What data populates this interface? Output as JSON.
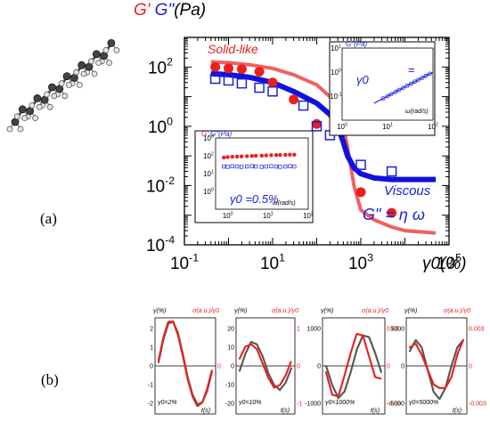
{
  "chart_data": [
    {
      "id": "main",
      "type": "scatter",
      "title_parts": [
        {
          "text": "G'",
          "color": "#e8201e"
        },
        {
          "text": " G\"",
          "color": "#1a22d8"
        },
        {
          "text": "(Pa)",
          "color": "#000000"
        }
      ],
      "xlabel": "γ0(%)",
      "xscale": "log",
      "yscale": "log",
      "xlim": [
        0.1,
        100000
      ],
      "ylim": [
        0.0001,
        1000
      ],
      "xticks": [
        0.1,
        10,
        1000,
        100000
      ],
      "xtick_labels": [
        {
          "base": "10",
          "exp": "-1"
        },
        {
          "base": "10",
          "exp": "1"
        },
        {
          "base": "10",
          "exp": "3"
        },
        {
          "base": "10",
          "exp": "5"
        }
      ],
      "yticks": [
        0.0001,
        0.01,
        1,
        100
      ],
      "ytick_labels": [
        {
          "base": "10",
          "exp": "-4"
        },
        {
          "base": "10",
          "exp": "-2"
        },
        {
          "base": "10",
          "exp": "0"
        },
        {
          "base": "10",
          "exp": "2"
        }
      ],
      "annotations": {
        "solid": {
          "text": "Solid-like",
          "color": "#e8201e"
        },
        "viscous": {
          "text": "Viscous",
          "color": "#1a22d8"
        },
        "relation": {
          "text": "G\" = η ω",
          "color": "#1a22d8"
        }
      },
      "series": [
        {
          "name": "G'",
          "kind": "points",
          "marker": "filled-circle",
          "color": "#e8201e",
          "x": [
            0.5,
            1,
            2,
            5,
            10,
            30,
            100,
            1000,
            5000
          ],
          "y": [
            100,
            90,
            85,
            70,
            30,
            8,
            1.2,
            0.006,
            0.0012
          ]
        },
        {
          "name": "G\"",
          "kind": "points",
          "marker": "open-square",
          "color": "#1a22d8",
          "x": [
            0.5,
            1,
            2,
            5,
            10,
            50,
            100,
            200,
            1000,
            5000
          ],
          "y": [
            40,
            35,
            28,
            20,
            15,
            5,
            1,
            0.5,
            0.05,
            0.03
          ]
        },
        {
          "name": "G' fit",
          "kind": "line",
          "color": "#f06060",
          "width": 4,
          "x": [
            0.4,
            1,
            3,
            10,
            30,
            100,
            200,
            350,
            500,
            700,
            1000,
            2000,
            5000,
            10000,
            50000
          ],
          "y": [
            150,
            140,
            120,
            90,
            55,
            25,
            10,
            2.5,
            0.2,
            0.01,
            0.0015,
            0.0007,
            0.0004,
            0.0003,
            0.00025
          ]
        },
        {
          "name": "G\" fit",
          "kind": "line",
          "color": "#1010e0",
          "width": 6,
          "x": [
            0.4,
            1,
            3,
            10,
            30,
            100,
            200,
            300,
            400,
            500,
            700,
            1000,
            2000,
            5000,
            10000,
            50000
          ],
          "y": [
            60,
            55,
            45,
            30,
            15,
            6,
            2.5,
            1,
            0.3,
            0.1,
            0.04,
            0.025,
            0.018,
            0.016,
            0.016,
            0.016
          ]
        }
      ]
    },
    {
      "id": "inset_viscous",
      "type": "scatter",
      "title": "G\"(Pa)",
      "xlabel": "ω(rad/s)",
      "xscale": "log",
      "yscale": "log",
      "xlim": [
        1,
        100
      ],
      "ylim": [
        0.01,
        10
      ],
      "ytick_labels": [
        {
          "base": "10",
          "exp": "1"
        },
        {
          "base": "10",
          "exp": "0"
        },
        {
          "base": "10",
          "exp": "-1"
        }
      ],
      "xtick_labels": [
        {
          "base": "10",
          "exp": "0"
        },
        {
          "base": "10",
          "exp": "1"
        },
        {
          "base": "10",
          "exp": "2"
        }
      ],
      "annotations": {
        "gamma": "γ0",
        "eq": "="
      },
      "series": [
        {
          "name": "G\"",
          "kind": "points",
          "marker": "open-circle",
          "color": "#1a22d8",
          "x": [
            8,
            10,
            12,
            15,
            18,
            22,
            27,
            33,
            40,
            48,
            58,
            70,
            85
          ],
          "y": [
            0.08,
            0.1,
            0.12,
            0.15,
            0.18,
            0.22,
            0.27,
            0.33,
            0.4,
            0.48,
            0.58,
            0.7,
            0.85
          ]
        },
        {
          "name": "slope",
          "kind": "line",
          "color": "#1a22d8",
          "width": 1.2,
          "x": [
            5,
            100
          ],
          "y": [
            0.05,
            1
          ]
        }
      ]
    },
    {
      "id": "inset_solid",
      "type": "scatter",
      "title_parts": [
        {
          "text": "G'",
          "color": "#e8201e"
        },
        {
          "text": ",G\"(Pa)",
          "color": "#1a22d8"
        }
      ],
      "xlabel": "ω(rad/s)",
      "xscale": "log",
      "yscale": "log",
      "xlim": [
        0.5,
        100
      ],
      "ylim": [
        0.1,
        1000
      ],
      "ytick_labels": [
        {
          "base": "10",
          "exp": "3"
        },
        {
          "base": "10",
          "exp": "2"
        },
        {
          "base": "10",
          "exp": "1"
        },
        {
          "base": "10",
          "exp": "0"
        }
      ],
      "xtick_labels": [
        {
          "base": "10",
          "exp": "0"
        },
        {
          "base": "10",
          "exp": "1"
        },
        {
          "base": "10",
          "exp": "2"
        }
      ],
      "annotations": {
        "gamma": "γ0 =0.5%"
      },
      "series": [
        {
          "name": "G'",
          "kind": "points",
          "marker": "filled-circle",
          "color": "#e8201e",
          "x": [
            0.8,
            1,
            1.3,
            1.7,
            2.2,
            3,
            4,
            5,
            7,
            9,
            12,
            16,
            20,
            27,
            35,
            45
          ],
          "y": [
            80,
            85,
            88,
            90,
            92,
            95,
            98,
            100,
            102,
            105,
            108,
            110,
            112,
            114,
            115,
            115
          ]
        },
        {
          "name": "G\"",
          "kind": "points",
          "marker": "open-square",
          "color": "#1a22d8",
          "x": [
            0.8,
            1,
            1.3,
            1.7,
            2.2,
            3,
            4,
            5,
            7,
            9,
            12,
            16,
            20,
            27,
            35,
            45
          ],
          "y": [
            25,
            24,
            26,
            25,
            24,
            25,
            26,
            25,
            24,
            25,
            26,
            25,
            24,
            25,
            26,
            25
          ]
        }
      ]
    },
    {
      "id": "waveform_2",
      "type": "line",
      "y_left_label": "γ(%)",
      "y_right_label": "σ(a.u.)/γ0",
      "xlabel": "t(s)",
      "gamma_label": "γ0=2%",
      "left_ticks": [
        "2",
        "1",
        "0",
        "-1",
        "-2"
      ],
      "right_ticks": [
        "0"
      ],
      "series": [
        {
          "name": "γ",
          "color": "#555555",
          "values": [
            0.2,
            1.4,
            2.2,
            2.3,
            1.7,
            0.6,
            -0.6,
            -1.5,
            -2.0,
            -1.9,
            -1.3,
            -0.3
          ]
        },
        {
          "name": "σ/γ0",
          "color": "#e8201e",
          "values": [
            0.3,
            1.5,
            2.3,
            2.3,
            1.6,
            0.5,
            -0.7,
            -1.6,
            -2.1,
            -1.9,
            -1.2,
            -0.2
          ]
        }
      ]
    },
    {
      "id": "waveform_10",
      "type": "line",
      "y_left_label": "γ(%)",
      "y_right_label": "σ(a.u.)/γ0",
      "xlabel": "t(s)",
      "gamma_label": "γ0=10%",
      "left_ticks": [
        "20",
        "10",
        "0",
        "-10",
        "-20"
      ],
      "right_ticks": [
        "1",
        "0",
        "-1"
      ],
      "series": [
        {
          "name": "γ",
          "color": "#555555",
          "values": [
            -2,
            5,
            10,
            9,
            4,
            -3,
            -8,
            -10,
            -7,
            -1
          ]
        },
        {
          "name": "σ/γ0",
          "color": "#e8201e",
          "values": [
            3,
            8,
            9,
            7,
            1,
            -5,
            -9,
            -8,
            -4,
            2
          ]
        }
      ]
    },
    {
      "id": "waveform_1000",
      "type": "line",
      "y_left_label": "γ(%)",
      "y_right_label": "σ(a.u.)/γ0",
      "xlabel": "t(s)",
      "gamma_label": "γ0=1000%",
      "left_ticks": [
        "1000",
        "0",
        "-1000"
      ],
      "right_ticks": [
        "0.03",
        "0",
        "-0.03"
      ],
      "series": [
        {
          "name": "γ",
          "color": "#555555",
          "values": [
            0,
            -600,
            -1000,
            -800,
            -200,
            500,
            950,
            900,
            400,
            -200
          ]
        },
        {
          "name": "σ/γ0",
          "color": "#e8201e",
          "values": [
            -200,
            -900,
            -950,
            -300,
            400,
            1000,
            950,
            300,
            -350,
            -400
          ]
        }
      ]
    },
    {
      "id": "waveform_5000",
      "type": "line",
      "y_left_label": "γ(%)",
      "y_right_label": "σ(a.u.)/γ0",
      "xlabel": "t(s)",
      "gamma_label": "γ0=5000%",
      "left_ticks": [
        "5000",
        "0",
        "-5000"
      ],
      "right_ticks": [
        "0.003",
        "0",
        "-0.003"
      ],
      "series": [
        {
          "name": "γ",
          "color": "#555555",
          "values": [
            2000,
            3500,
            2500,
            -500,
            -3500,
            -4500,
            -3000,
            0,
            2500,
            3500
          ]
        },
        {
          "name": "σ/γ0",
          "color": "#e8201e",
          "values": [
            2500,
            3000,
            1500,
            -500,
            -2500,
            -3000,
            -3000,
            -1500,
            1500,
            3500
          ]
        }
      ]
    }
  ],
  "labels": {
    "panel_a": "(a)",
    "panel_b": "(b)"
  }
}
